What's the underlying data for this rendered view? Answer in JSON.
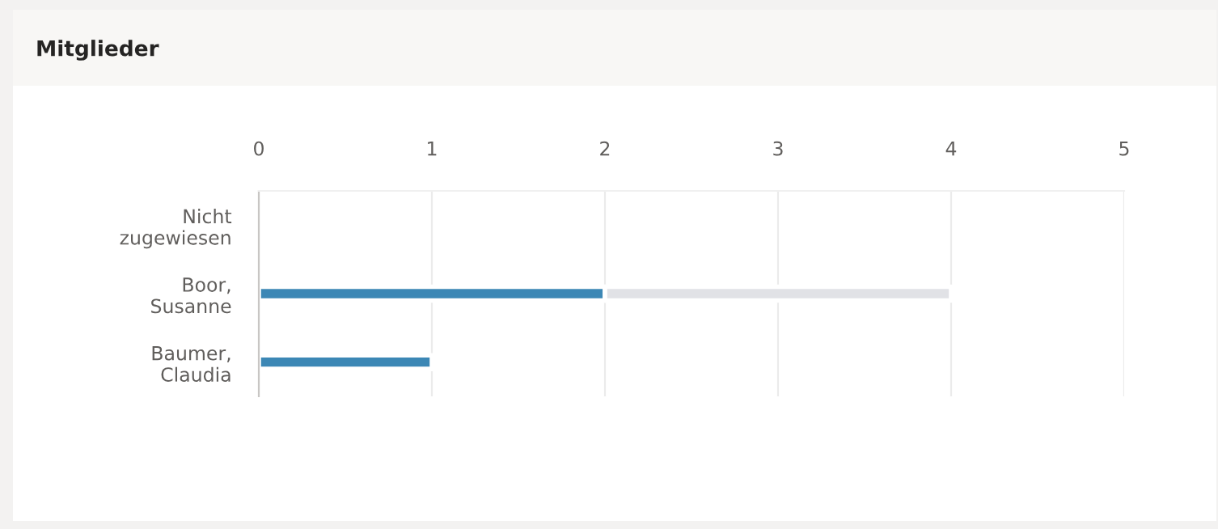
{
  "chart_data": {
    "type": "bar",
    "orientation": "horizontal",
    "stacked": true,
    "title": "Mitglieder",
    "categories": [
      "Nicht zugewiesen",
      "Boor, Susanne",
      "Baumer, Claudia"
    ],
    "series": [
      {
        "color": "#3c87b5",
        "values": [
          0,
          2,
          1
        ]
      },
      {
        "color": "#e1e2e6",
        "values": [
          0,
          2,
          0
        ]
      }
    ],
    "xlim": [
      0,
      5
    ],
    "xticks": [
      0,
      1,
      2,
      3,
      4,
      5
    ],
    "grid": "x",
    "legend": false
  }
}
